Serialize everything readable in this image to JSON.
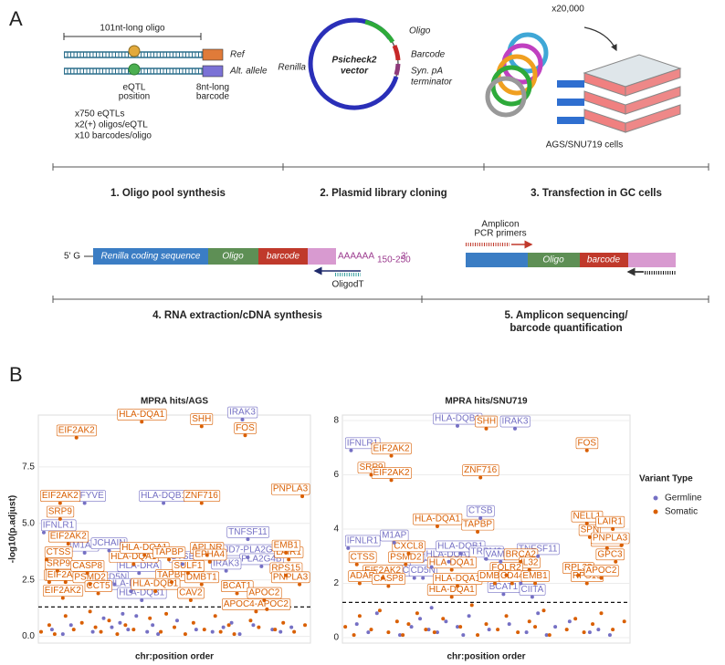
{
  "panel_a": {
    "label": "A",
    "oligo_length": "101nt-long oligo",
    "ref": "Ref",
    "alt": "Alt. allele",
    "eqtl_position": [
      "eQTL",
      "position"
    ],
    "barcode_note": [
      "8nt-long",
      "barcode"
    ],
    "counts": [
      "x750 eQTLs",
      "x2(+) oligos/eQTL",
      "x10 barcodes/oligo"
    ],
    "vector": {
      "oligo": "Oligo",
      "barcode": "Barcode",
      "terminator": [
        "Syn. pA",
        "terminator"
      ],
      "renilla": "Renilla",
      "name": [
        "Psicheck2",
        "vector"
      ]
    },
    "copies": "x20,000",
    "cells": "AGS/SNU719 cells",
    "steps": [
      "1. Oligo pool synthesis",
      "2. Plasmid library cloning",
      "3. Transfection in GC cells",
      "4. RNA extraction/cDNA synthesis",
      [
        "5. Amplicon sequencing/",
        "barcode quantification"
      ]
    ],
    "construct": {
      "five_prime": "5' G",
      "renilla": "Renilla coding sequence",
      "oligo": "Oligo",
      "barcode": "barcode",
      "polya": "AAAAAA",
      "polya_length": "150-250",
      "three_prime": "3'",
      "oligodt": "OligodT"
    },
    "amplicon": {
      "primers": [
        "Amplicon",
        "PCR primers"
      ],
      "oligo": "Oligo",
      "barcode": "barcode"
    }
  },
  "panel_b_label": "B",
  "legend_title": "Variant Type",
  "chart_data": [
    {
      "type": "scatter",
      "title": "MPRA hits/AGS",
      "x_label": "chr:position order",
      "y_label": "-log10(p.adjust)",
      "xlim": [
        0,
        100
      ],
      "ylim": [
        -0.3,
        9.8
      ],
      "yticks": [
        {
          "value": 0,
          "label": "0.0"
        },
        2.5,
        {
          "value": 5,
          "label": "5.0"
        },
        7.5
      ],
      "grid": true,
      "threshold": 1.3,
      "series": [
        {
          "name": "Germline",
          "color": "#7570c4",
          "x": [
            75,
            2,
            17,
            46,
            17,
            26,
            28,
            34,
            38,
            37,
            53,
            77,
            77,
            82,
            69,
            5,
            9,
            12,
            20,
            24,
            27,
            30,
            31,
            33,
            36,
            40,
            42,
            44,
            51,
            58,
            64,
            68,
            71,
            74,
            79,
            86,
            89,
            93
          ],
          "values": [
            9.6,
            4.6,
            5.9,
            5.9,
            3.7,
            3.8,
            2.3,
            2.0,
            1.6,
            2.8,
            3.2,
            4.3,
            3.5,
            3.1,
            2.9,
            0.3,
            0.1,
            0.5,
            0.2,
            0.8,
            0.4,
            0.6,
            1.0,
            0.3,
            0.9,
            0.2,
            0.5,
            0.1,
            0.7,
            0.3,
            0.2,
            0.4,
            0.6,
            0.1,
            0.5,
            0.3,
            0.2,
            0.4
          ],
          "labels": [
            "IRAK3",
            "IFNLR1",
            "PIKFYVE",
            "HLA-DQB1",
            "M1AP",
            "JCHAIN",
            "CD5N",
            "HLA-DQA1",
            "HLA-DQB1",
            "HLA-DRA",
            "CTSB",
            "TNFSF11",
            "JMJD7-PLA2G4B",
            "PLA2G4B",
            "IRAK3",
            null,
            null,
            null,
            null,
            null,
            null,
            null,
            null,
            null,
            null,
            null,
            null,
            null,
            null,
            null,
            null,
            null,
            null,
            null,
            null,
            null,
            null,
            null
          ]
        },
        {
          "name": "Somatic",
          "color": "#d95f02",
          "x": [
            38,
            60,
            76,
            14,
            8,
            8,
            60,
            97,
            11,
            3,
            7,
            4,
            10,
            9,
            18,
            19,
            22,
            35,
            39,
            48,
            49,
            43,
            55,
            62,
            63,
            60,
            56,
            73,
            83,
            80,
            92,
            91,
            91,
            96,
            1,
            4,
            6,
            10,
            13,
            16,
            19,
            21,
            23,
            26,
            29,
            32,
            35,
            41,
            45,
            47,
            50,
            54,
            57,
            61,
            65,
            67,
            70,
            72,
            78,
            81,
            84,
            87,
            90,
            94,
            98
          ],
          "values": [
            9.5,
            9.3,
            8.9,
            8.8,
            5.9,
            5.2,
            5.9,
            6.2,
            4.1,
            3.4,
            2.9,
            2.4,
            2.4,
            1.7,
            2.8,
            2.3,
            1.9,
            3.2,
            3.6,
            3.4,
            2.4,
            2.0,
            2.8,
            3.6,
            3.3,
            2.3,
            1.6,
            1.9,
            1.6,
            1.1,
            3.4,
            3.7,
            2.7,
            2.3,
            0.2,
            0.5,
            0.1,
            0.9,
            0.3,
            0.6,
            1.1,
            0.4,
            0.2,
            0.7,
            0.1,
            0.5,
            0.3,
            0.8,
            0.2,
            1.0,
            0.4,
            0.1,
            0.6,
            0.3,
            0.9,
            0.2,
            0.5,
            0.1,
            0.7,
            0.4,
            1.2,
            0.3,
            0.6,
            0.2,
            0.5
          ],
          "labels": [
            "HLA-DQA1",
            "SHH",
            "FOS",
            "EIF2AK2",
            "EIF2AK2",
            "SRP9",
            "ZNF716",
            "PNPLA3",
            "EIF2AK2",
            "CTSS",
            "SRP9",
            "ADAR",
            "EIF2AK2",
            "EIF2AK2",
            "CASP8",
            "PSMD2",
            "CCT5",
            "HLA-DQA1",
            "HLA-DQA1",
            "TAPBP",
            "TAPBP",
            "HLA-DQB1",
            "SULF1",
            "APLNR",
            "EPHA4",
            "DMBT1",
            "CAV2",
            "BCAT1",
            "APOC2",
            "APOC4-APOC2",
            "LAIR1",
            "EMB1",
            "RPS15",
            "PNPLA3",
            null,
            null,
            null,
            null,
            null,
            null,
            null,
            null,
            null,
            null,
            null,
            null,
            null,
            null,
            null,
            null,
            null,
            null,
            null,
            null,
            null,
            null,
            null,
            null,
            null,
            null,
            null,
            null,
            null,
            null,
            null
          ]
        }
      ]
    },
    {
      "type": "scatter",
      "title": "MPRA hits/SNU719",
      "x_label": "chr:position order",
      "xlim": [
        0,
        100
      ],
      "ylim": [
        -0.2,
        8.2
      ],
      "yticks": [
        0,
        2,
        4,
        6,
        8
      ],
      "grid": true,
      "threshold": 1.3,
      "series": [
        {
          "name": "Germline",
          "color": "#7570c4",
          "x": [
            40,
            60,
            3,
            48,
            2,
            18,
            25,
            31,
            28,
            37,
            41,
            50,
            55,
            56,
            62,
            66,
            68,
            5,
            9,
            12,
            20,
            24,
            27,
            30,
            31,
            33,
            36,
            40,
            42,
            44,
            51,
            58,
            64,
            68,
            71,
            74,
            79,
            86,
            89,
            93
          ],
          "values": [
            7.8,
            7.7,
            6.9,
            4.4,
            3.3,
            3.5,
            2.2,
            2.6,
            2.2,
            2.8,
            3.1,
            2.9,
            2.8,
            1.6,
            2.0,
            1.5,
            3.0,
            0.5,
            0.2,
            0.9,
            0.1,
            0.4,
            0.7,
            0.3,
            1.1,
            0.2,
            0.6,
            0.4,
            0.1,
            0.8,
            0.3,
            0.5,
            0.2,
            0.9,
            0.1,
            0.4,
            0.6,
            0.2,
            0.3,
            0.1
          ],
          "labels": [
            "HLA-DQB1",
            "IRAK3",
            "IFNLR1",
            "CTSB",
            "IFNLR1",
            "M1AP",
            "JCHAIN",
            "HLA-DRA",
            "CD5N",
            "HLA-DQA1",
            "HLA-DQB1",
            "TRPM3",
            "VAMP1",
            "BCAT1",
            "IRAK3",
            "CIITA",
            "TNFSF11",
            null,
            null,
            null,
            null,
            null,
            null,
            null,
            null,
            null,
            null,
            null,
            null,
            null,
            null,
            null,
            null,
            null,
            null,
            null,
            null,
            null,
            null,
            null
          ]
        },
        {
          "name": "Somatic",
          "color": "#d95f02",
          "x": [
            50,
            17,
            10,
            17,
            85,
            48,
            47,
            33,
            85,
            86,
            94,
            92,
            97,
            23,
            5,
            22,
            14,
            6,
            16,
            38,
            40,
            38,
            62,
            65,
            57,
            53,
            59,
            67,
            82,
            85,
            90,
            95,
            1,
            4,
            6,
            10,
            13,
            16,
            19,
            21,
            23,
            26,
            29,
            32,
            35,
            41,
            45,
            47,
            50,
            54,
            57,
            61,
            65,
            67,
            70,
            72,
            78,
            81,
            84,
            87,
            90,
            94,
            98
          ],
          "values": [
            7.7,
            6.7,
            6.0,
            5.8,
            6.9,
            5.9,
            3.9,
            4.1,
            4.2,
            3.7,
            4.0,
            3.3,
            3.4,
            3.1,
            2.7,
            2.7,
            2.2,
            2.0,
            1.9,
            2.5,
            1.9,
            1.5,
            2.8,
            2.5,
            2.3,
            2.0,
            2.0,
            2.0,
            2.3,
            2.0,
            2.2,
            2.8,
            0.4,
            0.1,
            0.8,
            0.3,
            1.0,
            0.2,
            0.6,
            0.1,
            0.5,
            0.9,
            0.3,
            0.2,
            0.7,
            0.4,
            1.2,
            0.1,
            0.5,
            0.3,
            0.8,
            0.2,
            0.6,
            0.4,
            1.0,
            0.1,
            0.3,
            0.7,
            0.2,
            0.5,
            0.9,
            0.3,
            0.6
          ],
          "labels": [
            "SHH",
            "EIF2AK2",
            "SRP9",
            "EIF2AK2",
            "FOS",
            "ZNF716",
            "TAPBP",
            "HLA-DQA1",
            "NELL1",
            "SPN",
            "LAIR1",
            "RPS15",
            "PNPLA3",
            "CXCL8",
            "CTSS",
            "PSMD2",
            "EIF2AK2",
            "ADAR",
            "CASP8",
            "HLA-DQA1",
            "HLA-DQA1",
            "HLA-DQA1",
            "BRCA2",
            "IL32",
            "FOLR2",
            "DMBT1",
            "CD44",
            "EMB1",
            "RPL38",
            "RPS19",
            "APOC2",
            "GPC3",
            null,
            null,
            null,
            null,
            null,
            null,
            null,
            null,
            null,
            null,
            null,
            null,
            null,
            null,
            null,
            null,
            null,
            null,
            null,
            null,
            null,
            null,
            null,
            null,
            null,
            null,
            null,
            null,
            null,
            null,
            null
          ]
        }
      ]
    }
  ]
}
